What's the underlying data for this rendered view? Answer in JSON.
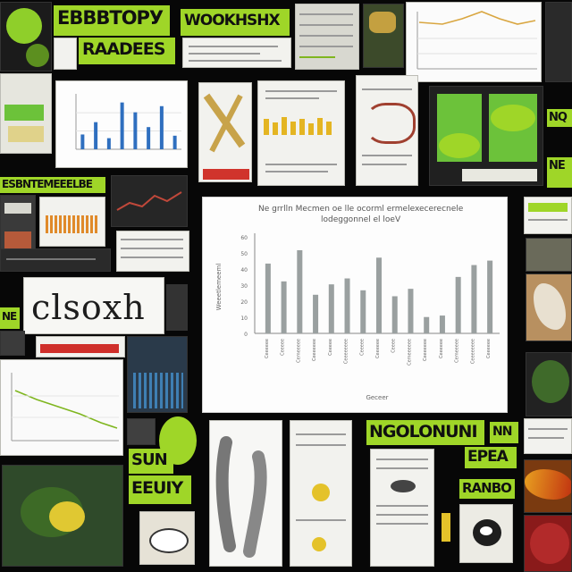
{
  "labels": {
    "top_left_1": "ЕВВВТОРУ",
    "top_left_2": "RAADEES",
    "top_mid": "WOOKHSHX",
    "left_mid": "ESBNTEMEEELBE",
    "handwriting": "clsoxh",
    "bottom_right_1": "NGOLONUNI",
    "bottom_right_1b": "NN",
    "bottom_right_2": "EPEA",
    "bottom_right_3": "RANBO",
    "bottom_left_1": "SUN",
    "bottom_left_2": "EEUIY",
    "right_edge_1": "NQ",
    "right_edge_2": "NE",
    "left_edge": "NE"
  },
  "main_chart": {
    "title_line1": "Ne grrlln Mecmen  oe  lle  ocorml  ermelexecerecnele",
    "title_line2": "lodeggonnel  el  loeV",
    "y_label": "Weeetlemeeml",
    "x_label": "Geceer",
    "y_ticks": [
      "60",
      "50",
      "40",
      "30",
      "20",
      "10",
      "0"
    ],
    "chart_data": {
      "type": "bar",
      "categories": [
        "Ceeeeee",
        "Ceeeee",
        "Cemeeeee",
        "Ceeeeeee",
        "Ceeeee",
        "Ceeeeeeee",
        "Ceeeee",
        "Ceeeeee",
        "Ceeee",
        "Cemeeeeee",
        "Ceeeeeee",
        "Ceeeeee",
        "Cemeeeee",
        "Ceeeeeeee",
        "Ceeeeee"
      ],
      "values": [
        47,
        35,
        56,
        26,
        33,
        37,
        29,
        51,
        25,
        30,
        11,
        12,
        38,
        46,
        49
      ],
      "ylim": [
        0,
        65
      ],
      "color": "#9aa0a0"
    }
  },
  "blue_chart": {
    "chart_data": {
      "type": "bar",
      "values": [
        12,
        22,
        9,
        38,
        30,
        18,
        35,
        11
      ],
      "ylim": [
        0,
        45
      ],
      "color": "#2f6fbf"
    }
  },
  "colors": {
    "lime": "#9fd628",
    "background": "#070707",
    "paper": "#f2f2ee"
  }
}
